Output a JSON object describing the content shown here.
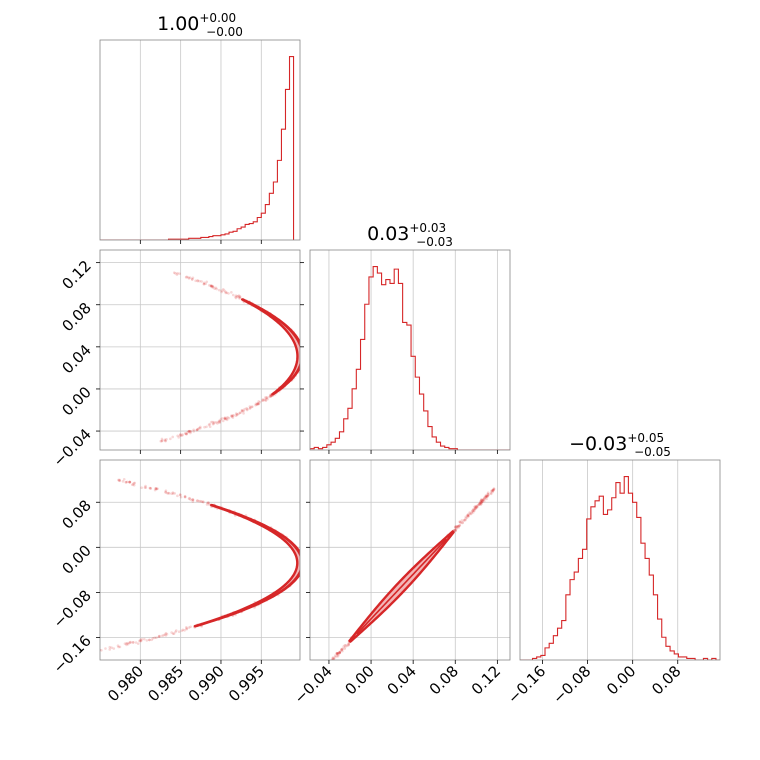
{
  "chart_data": {
    "type": "corner",
    "color": "#d62728",
    "grid": true,
    "parameters": [
      {
        "title": {
          "median": "1.00",
          "plus": "+0.00",
          "minus": "−0.00"
        },
        "range": [
          0.975,
          0.9998
        ],
        "ticks": [
          {
            "value": 0.98,
            "label": "0.980"
          },
          {
            "value": 0.985,
            "label": "0.985"
          },
          {
            "value": 0.99,
            "label": "0.990"
          },
          {
            "value": 0.995,
            "label": "0.995"
          }
        ],
        "hist_start": 0.975,
        "hist_bin_width": 0.0005,
        "hist_counts": [
          0,
          0,
          0,
          0,
          0,
          0,
          0,
          0,
          0,
          0,
          0,
          0,
          0,
          0,
          0,
          0,
          0,
          1,
          1,
          1,
          1,
          1,
          2,
          2,
          2,
          3,
          3,
          4,
          5,
          5,
          6,
          7,
          9,
          10,
          13,
          15,
          18,
          19,
          21,
          26,
          31,
          41,
          54,
          67,
          92,
          128,
          174,
          212
        ]
      },
      {
        "title": {
          "median": "0.03",
          "plus": "+0.03",
          "minus": "−0.03"
        },
        "range": [
          -0.058,
          0.132
        ],
        "ticks": [
          {
            "value": -0.04,
            "label": "−0.04"
          },
          {
            "value": 0.0,
            "label": "0.00"
          },
          {
            "value": 0.04,
            "label": "0.04"
          },
          {
            "value": 0.08,
            "label": "0.08"
          },
          {
            "value": 0.12,
            "label": "0.12"
          }
        ],
        "hist_start": -0.058,
        "hist_bin_width": 0.004,
        "hist_counts": [
          1,
          2,
          1,
          2,
          4,
          6,
          9,
          14,
          24,
          32,
          47,
          62,
          85,
          112,
          133,
          141,
          136,
          127,
          131,
          128,
          139,
          128,
          98,
          96,
          72,
          56,
          43,
          30,
          18,
          10,
          6,
          3,
          2,
          1,
          1,
          0,
          0,
          0,
          0,
          0,
          0,
          0,
          0,
          0,
          0,
          0,
          0,
          0
        ]
      },
      {
        "title": {
          "median": "−0.03",
          "plus": "+0.05",
          "minus": "−0.05"
        },
        "range": [
          -0.2,
          0.155
        ],
        "ticks": [
          {
            "value": -0.16,
            "label": "−0.16"
          },
          {
            "value": -0.08,
            "label": "−0.08"
          },
          {
            "value": 0.0,
            "label": "0.00"
          },
          {
            "value": 0.08,
            "label": "0.08"
          }
        ],
        "hist_start": -0.2,
        "hist_bin_width": 0.0074,
        "hist_counts": [
          0,
          0,
          0,
          1,
          2,
          3,
          8,
          11,
          16,
          21,
          26,
          43,
          53,
          58,
          67,
          73,
          93,
          101,
          105,
          108,
          96,
          99,
          107,
          117,
          110,
          121,
          110,
          104,
          94,
          77,
          67,
          56,
          43,
          27,
          15,
          9,
          6,
          4,
          2,
          2,
          1,
          1,
          0,
          0,
          1,
          0,
          1,
          0
        ]
      }
    ],
    "pairs": [
      {
        "row": 1,
        "col": 0,
        "curve": "x = 1 - 2.6*(y - 0.032)^2",
        "y_span": [
          -0.05,
          0.11
        ]
      },
      {
        "row": 2,
        "col": 0,
        "curve": "x = 1 - 1.05*(y + 0.028)^2",
        "y_span": [
          -0.19,
          0.12
        ]
      },
      {
        "row": 2,
        "col": 1,
        "curve": "y = -0.127 + 1.98*x",
        "x_span": [
          -0.055,
          0.117
        ]
      }
    ]
  }
}
